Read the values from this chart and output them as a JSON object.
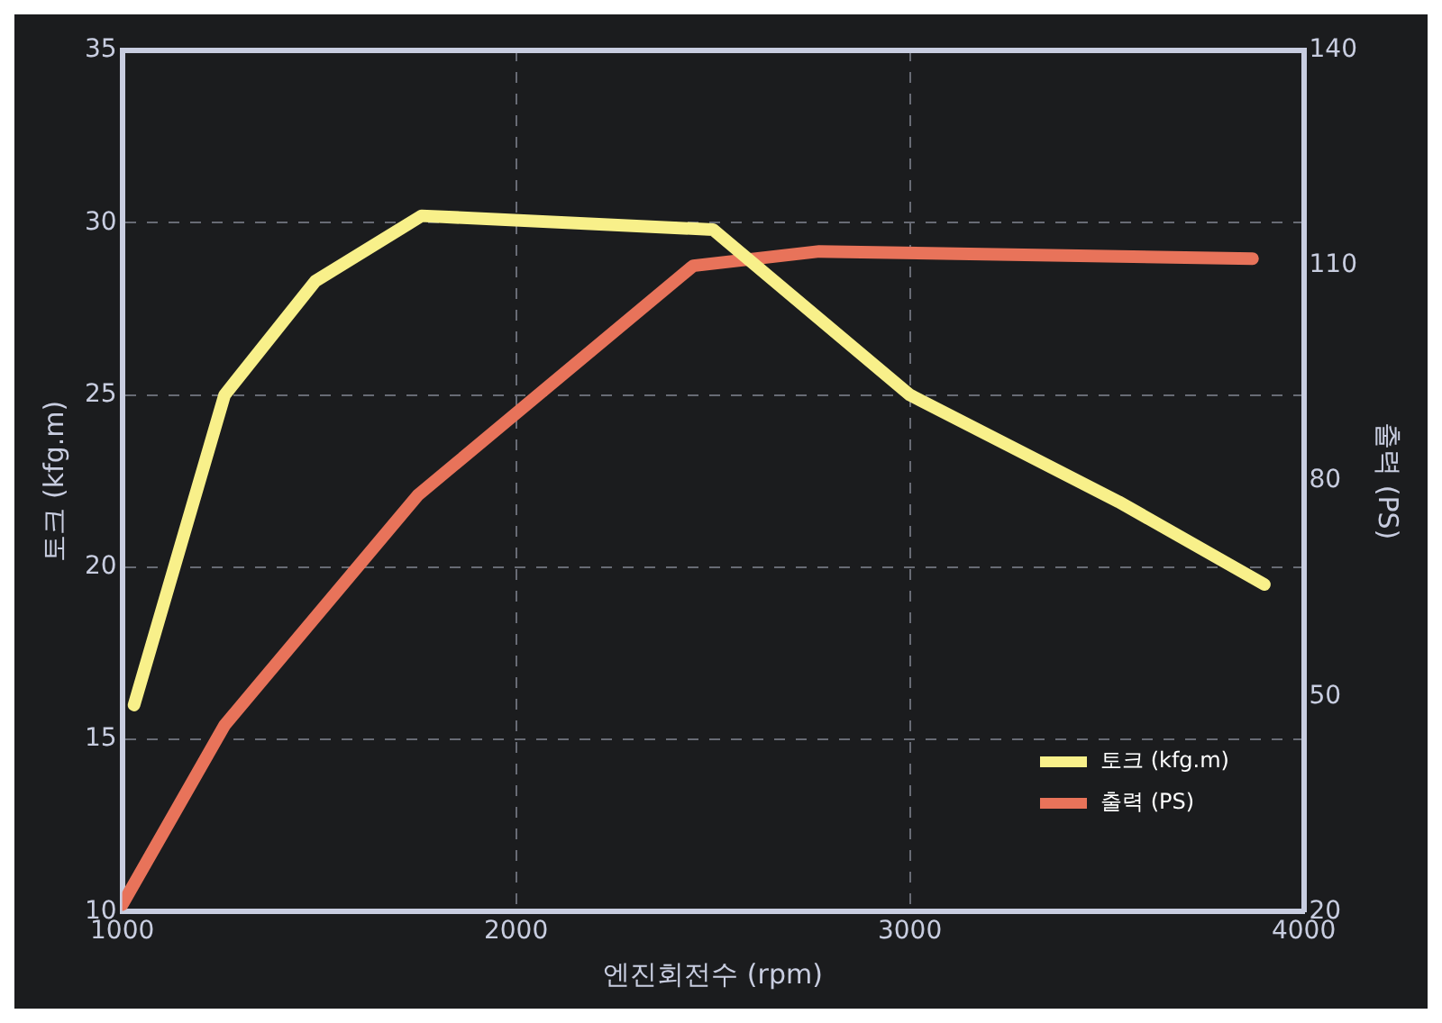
{
  "chart_data": {
    "type": "line",
    "xlabel": "엔진회전수 (rpm)",
    "ylabel": "토크 (kfg.m)",
    "y2label": "출력 (PS)",
    "xlim": [
      1000,
      4000
    ],
    "xticks": [
      1000,
      2000,
      3000,
      4000
    ],
    "ylim": [
      10,
      35
    ],
    "yticks": [
      10,
      15,
      20,
      25,
      30,
      35
    ],
    "y2lim": [
      20,
      140
    ],
    "y2ticks": [
      20,
      50,
      80,
      110,
      140
    ],
    "grid": true,
    "line_style": "solid",
    "marker": "none",
    "legend": "bottom right",
    "series": [
      {
        "name": "토크 (kfg.m)",
        "color": "#f8f08a",
        "x": [
          1030,
          1260,
          1490,
          1760,
          2500,
          3000,
          3530,
          3900
        ],
        "values": [
          16,
          25,
          28.3,
          30.2,
          29.8,
          25,
          21.9,
          19.5
        ]
      },
      {
        "name": "출력 (PS)",
        "color": "#e8735a",
        "axis": "y2",
        "x": [
          1000,
          1260,
          1750,
          2450,
          2770,
          3870
        ],
        "values": [
          21,
          46,
          78,
          110,
          112,
          111
        ]
      }
    ]
  }
}
